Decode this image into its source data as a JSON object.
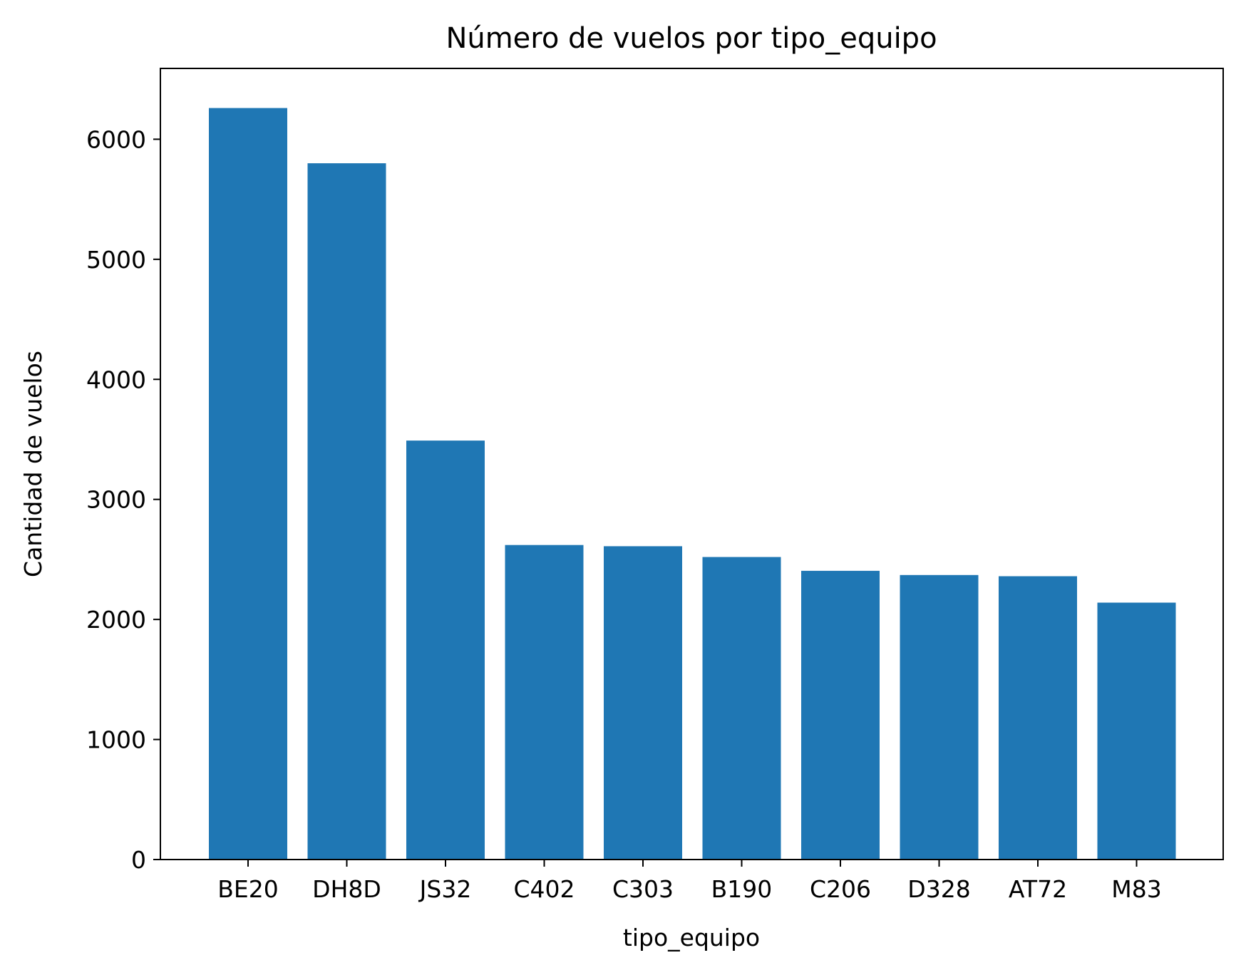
{
  "chart_data": {
    "type": "bar",
    "title": "Número de vuelos por tipo_equipo",
    "xlabel": "tipo_equipo",
    "ylabel": "Cantidad de vuelos",
    "categories": [
      "BE20",
      "DH8D",
      "JS32",
      "C402",
      "C303",
      "B190",
      "C206",
      "D328",
      "AT72",
      "M83"
    ],
    "values": [
      6260,
      5800,
      3490,
      2620,
      2610,
      2520,
      2405,
      2370,
      2360,
      2140
    ],
    "ylim": [
      0,
      6590
    ],
    "yticks": [
      0,
      1000,
      2000,
      3000,
      4000,
      5000,
      6000
    ],
    "ytick_labels": [
      "0",
      "1000",
      "2000",
      "3000",
      "4000",
      "5000",
      "6000"
    ],
    "bar_color": "#1f77b4",
    "grid": false,
    "legend": "none"
  }
}
